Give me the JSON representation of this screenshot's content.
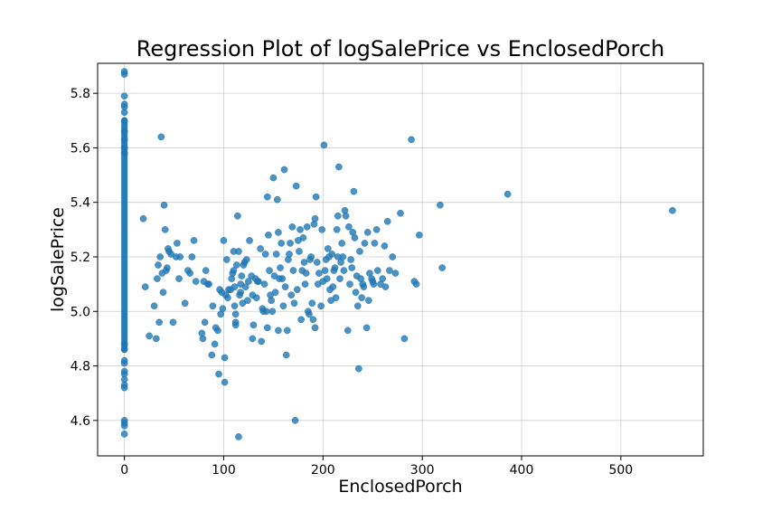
{
  "chart_data": {
    "type": "scatter",
    "title": "Regression Plot of logSalePrice vs EnclosedPorch",
    "xlabel": "EnclosedPorch",
    "ylabel": "logSalePrice",
    "xlim": [
      -27,
      583
    ],
    "ylim": [
      4.47,
      5.91
    ],
    "xticks": [
      0,
      100,
      200,
      300,
      400,
      500
    ],
    "yticks": [
      4.6,
      4.8,
      5.0,
      5.2,
      5.4,
      5.6,
      5.8
    ],
    "ytick_labels": [
      "4.6",
      "4.8",
      "5.0",
      "5.2",
      "5.4",
      "5.6",
      "5.8"
    ],
    "grid": true,
    "legend": "none",
    "colors": {
      "points": "#1f77b4"
    },
    "x0_band": {
      "x": 0,
      "y_min": 4.86,
      "y_max": 5.7
    },
    "points": [
      [
        0,
        5.88
      ],
      [
        0,
        5.87
      ],
      [
        0,
        5.79
      ],
      [
        0,
        5.76
      ],
      [
        0,
        5.75
      ],
      [
        0,
        5.73
      ],
      [
        0,
        5.7
      ],
      [
        0,
        5.66
      ],
      [
        0,
        5.63
      ],
      [
        0,
        5.6
      ],
      [
        0,
        5.58
      ],
      [
        0,
        4.88
      ],
      [
        0,
        4.86
      ],
      [
        0,
        4.82
      ],
      [
        0,
        4.81
      ],
      [
        0,
        4.78
      ],
      [
        0,
        4.77
      ],
      [
        0,
        4.75
      ],
      [
        0,
        4.73
      ],
      [
        0,
        4.72
      ],
      [
        0,
        4.6
      ],
      [
        0,
        4.59
      ],
      [
        0,
        4.58
      ],
      [
        0,
        4.55
      ],
      [
        19,
        5.34
      ],
      [
        21,
        5.09
      ],
      [
        25,
        4.91
      ],
      [
        30,
        5.02
      ],
      [
        32,
        4.9
      ],
      [
        33,
        5.12
      ],
      [
        34,
        5.17
      ],
      [
        35,
        4.96
      ],
      [
        36,
        5.2
      ],
      [
        37,
        5.64
      ],
      [
        38,
        5.14
      ],
      [
        39,
        5.07
      ],
      [
        40,
        5.39
      ],
      [
        41,
        5.3
      ],
      [
        42,
        5.15
      ],
      [
        43,
        5.16
      ],
      [
        44,
        5.23
      ],
      [
        45,
        5.22
      ],
      [
        47,
        5.21
      ],
      [
        49,
        4.96
      ],
      [
        52,
        5.2
      ],
      [
        53,
        5.25
      ],
      [
        55,
        5.12
      ],
      [
        56,
        5.2
      ],
      [
        61,
        5.03
      ],
      [
        64,
        5.15
      ],
      [
        66,
        5.14
      ],
      [
        68,
        5.2
      ],
      [
        70,
        5.26
      ],
      [
        72,
        5.11
      ],
      [
        78,
        4.92
      ],
      [
        79,
        4.9
      ],
      [
        80,
        5.11
      ],
      [
        81,
        4.96
      ],
      [
        82,
        5.15
      ],
      [
        84,
        5.1
      ],
      [
        85,
        5.1
      ],
      [
        88,
        4.84
      ],
      [
        89,
        5.02
      ],
      [
        91,
        4.88
      ],
      [
        92,
        4.94
      ],
      [
        94,
        4.93
      ],
      [
        95,
        4.77
      ],
      [
        96,
        5.08
      ],
      [
        97,
        4.99
      ],
      [
        98,
        5.07
      ],
      [
        99,
        5.01
      ],
      [
        100,
        5.26
      ],
      [
        101,
        4.74
      ],
      [
        101,
        4.83
      ],
      [
        102,
        5.06
      ],
      [
        103,
        5.19
      ],
      [
        104,
        5.05
      ],
      [
        105,
        5.08
      ],
      [
        107,
        5.08
      ],
      [
        108,
        5.12
      ],
      [
        109,
        5.14
      ],
      [
        110,
        5.15
      ],
      [
        110,
        5.22
      ],
      [
        111,
        5.09
      ],
      [
        111,
        5.02
      ],
      [
        112,
        4.99
      ],
      [
        112,
        4.96
      ],
      [
        112,
        4.95
      ],
      [
        113,
        5.17
      ],
      [
        114,
        5.35
      ],
      [
        115,
        5.22
      ],
      [
        115,
        4.54
      ],
      [
        116,
        5.06
      ],
      [
        117,
        5.1
      ],
      [
        117,
        5.07
      ],
      [
        118,
        5.13
      ],
      [
        119,
        5.03
      ],
      [
        120,
        5.17
      ],
      [
        121,
        5.18
      ],
      [
        122,
        5.09
      ],
      [
        123,
        5.19
      ],
      [
        124,
        5.04
      ],
      [
        125,
        5.11
      ],
      [
        126,
        5.26
      ],
      [
        128,
        5.13
      ],
      [
        129,
        5.06
      ],
      [
        129,
        4.9
      ],
      [
        130,
        4.95
      ],
      [
        132,
        5.12
      ],
      [
        133,
        5.05
      ],
      [
        134,
        5.11
      ],
      [
        135,
        5.11
      ],
      [
        137,
        5.23
      ],
      [
        138,
        4.89
      ],
      [
        139,
        5.01
      ],
      [
        140,
        5.0
      ],
      [
        141,
        5.1
      ],
      [
        142,
        5.21
      ],
      [
        143,
        5.0
      ],
      [
        144,
        4.94
      ],
      [
        144,
        5.42
      ],
      [
        145,
        5.28
      ],
      [
        146,
        5.15
      ],
      [
        147,
        5.06
      ],
      [
        148,
        5.04
      ],
      [
        149,
        5.0
      ],
      [
        150,
        5.49
      ],
      [
        151,
        5.13
      ],
      [
        152,
        5.07
      ],
      [
        153,
        5.21
      ],
      [
        154,
        5.41
      ],
      [
        155,
        5.29
      ],
      [
        155,
        4.93
      ],
      [
        156,
        5.12
      ],
      [
        157,
        5.16
      ],
      [
        158,
        5.25
      ],
      [
        159,
        5.12
      ],
      [
        160,
        5.02
      ],
      [
        161,
        5.52
      ],
      [
        162,
        5.09
      ],
      [
        163,
        4.84
      ],
      [
        164,
        4.93
      ],
      [
        165,
        5.19
      ],
      [
        166,
        5.21
      ],
      [
        167,
        5.25
      ],
      [
        168,
        5.06
      ],
      [
        169,
        5.31
      ],
      [
        170,
        5.15
      ],
      [
        171,
        5.03
      ],
      [
        172,
        4.6
      ],
      [
        173,
        5.46
      ],
      [
        174,
        5.08
      ],
      [
        175,
        5.26
      ],
      [
        176,
        5.22
      ],
      [
        177,
        5.3
      ],
      [
        178,
        4.97
      ],
      [
        179,
        5.15
      ],
      [
        180,
        5.27
      ],
      [
        181,
        5.18
      ],
      [
        182,
        5.1
      ],
      [
        183,
        5.14
      ],
      [
        184,
        5.31
      ],
      [
        185,
        5.0
      ],
      [
        186,
        4.99
      ],
      [
        187,
        5.19
      ],
      [
        188,
        5.2
      ],
      [
        189,
        5.03
      ],
      [
        190,
        4.97
      ],
      [
        191,
        5.32
      ],
      [
        192,
        5.34
      ],
      [
        192,
        4.94
      ],
      [
        193,
        5.42
      ],
      [
        194,
        5.18
      ],
      [
        195,
        5.1
      ],
      [
        196,
        5.14
      ],
      [
        198,
        5.02
      ],
      [
        199,
        5.3
      ],
      [
        200,
        5.11
      ],
      [
        201,
        5.61
      ],
      [
        202,
        5.15
      ],
      [
        203,
        5.19
      ],
      [
        204,
        5.12
      ],
      [
        205,
        5.23
      ],
      [
        206,
        5.2
      ],
      [
        207,
        5.08
      ],
      [
        208,
        5.04
      ],
      [
        209,
        5.21
      ],
      [
        210,
        5.09
      ],
      [
        211,
        5.15
      ],
      [
        212,
        5.16
      ],
      [
        213,
        5.05
      ],
      [
        214,
        5.3
      ],
      [
        215,
        5.35
      ],
      [
        215,
        5.2
      ],
      [
        216,
        5.53
      ],
      [
        217,
        5.12
      ],
      [
        218,
        5.18
      ],
      [
        219,
        5.25
      ],
      [
        220,
        5.2
      ],
      [
        221,
        5.15
      ],
      [
        222,
        5.37
      ],
      [
        223,
        5.35
      ],
      [
        225,
        4.93
      ],
      [
        226,
        5.31
      ],
      [
        227,
        5.1
      ],
      [
        228,
        5.19
      ],
      [
        229,
        5.16
      ],
      [
        230,
        5.29
      ],
      [
        231,
        5.44
      ],
      [
        232,
        5.27
      ],
      [
        233,
        5.07
      ],
      [
        234,
        5.13
      ],
      [
        235,
        5.02
      ],
      [
        236,
        4.79
      ],
      [
        237,
        5.22
      ],
      [
        238,
        5.12
      ],
      [
        239,
        5.05
      ],
      [
        240,
        5.1
      ],
      [
        241,
        5.09
      ],
      [
        242,
        5.25
      ],
      [
        244,
        4.94
      ],
      [
        245,
        5.29
      ],
      [
        246,
        5.04
      ],
      [
        247,
        5.14
      ],
      [
        249,
        5.12
      ],
      [
        250,
        5.11
      ],
      [
        251,
        5.1
      ],
      [
        252,
        5.25
      ],
      [
        254,
        5.3
      ],
      [
        255,
        5.15
      ],
      [
        258,
        5.1
      ],
      [
        260,
        5.12
      ],
      [
        262,
        5.24
      ],
      [
        263,
        5.09
      ],
      [
        265,
        5.33
      ],
      [
        267,
        5.15
      ],
      [
        270,
        5.2
      ],
      [
        273,
        5.14
      ],
      [
        278,
        5.36
      ],
      [
        282,
        4.9
      ],
      [
        289,
        5.63
      ],
      [
        292,
        5.11
      ],
      [
        294,
        5.1
      ],
      [
        297,
        5.28
      ],
      [
        318,
        5.39
      ],
      [
        320,
        5.16
      ],
      [
        386,
        5.43
      ],
      [
        552,
        5.37
      ]
    ]
  }
}
